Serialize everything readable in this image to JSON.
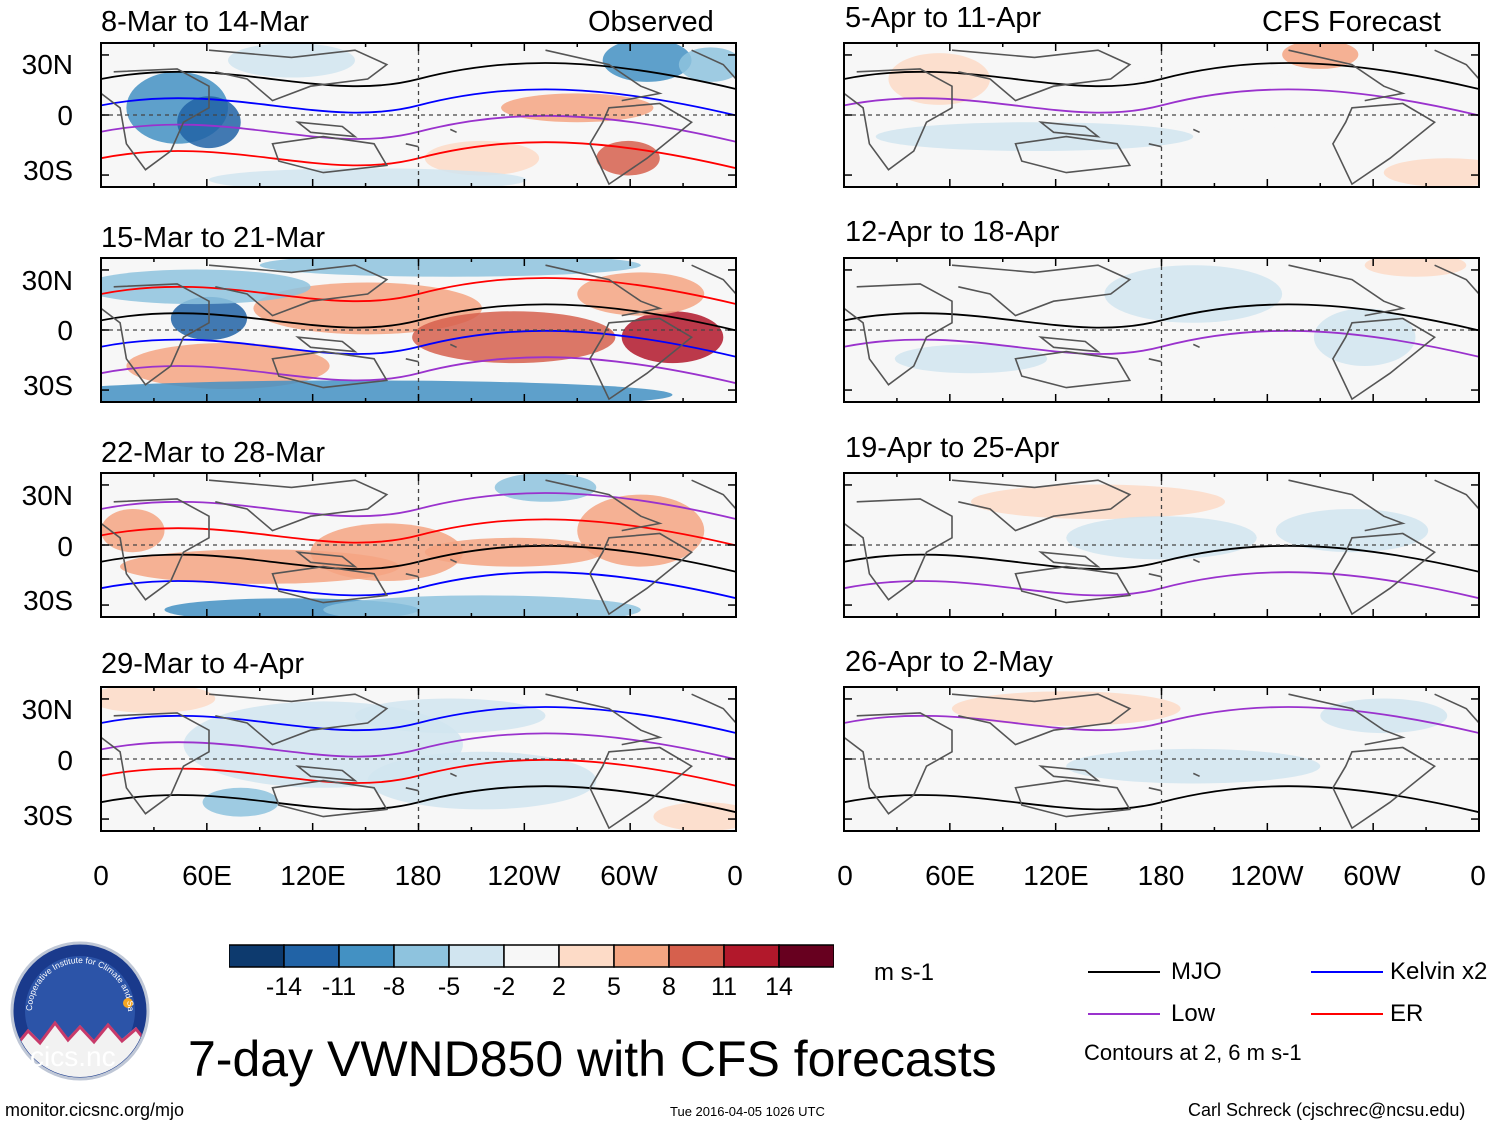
{
  "header": {
    "left_label": "Observed",
    "right_label": "CFS Forecast"
  },
  "panels": {
    "observed": [
      "8-Mar to 14-Mar",
      "15-Mar to 21-Mar",
      "22-Mar to 28-Mar",
      "29-Mar to 4-Apr"
    ],
    "forecast": [
      "5-Apr to 11-Apr",
      "12-Apr to 18-Apr",
      "19-Apr to 25-Apr",
      "26-Apr to 2-May"
    ]
  },
  "axes": {
    "lat_labels": [
      "30N",
      "0",
      "30S"
    ],
    "lon_labels": [
      "0",
      "60E",
      "120E",
      "180",
      "120W",
      "60W",
      "0"
    ]
  },
  "colorbar": {
    "ticks": [
      "-14",
      "-11",
      "-8",
      "-5",
      "-2",
      "2",
      "5",
      "8",
      "11",
      "14"
    ],
    "colors": [
      "#0d3a6e",
      "#2163a6",
      "#4391c3",
      "#8ec3de",
      "#d1e5f0",
      "#f7f7f7",
      "#fddbc7",
      "#f4a582",
      "#d6604d",
      "#b2182b",
      "#67001f"
    ],
    "units": "m s-1"
  },
  "legend": {
    "items": [
      {
        "label": "MJO",
        "color": "#000000"
      },
      {
        "label": "Kelvin x2",
        "color": "#0000ff"
      },
      {
        "label": "Low",
        "color": "#9a32cd"
      },
      {
        "label": "ER",
        "color": "#ff0000"
      }
    ],
    "note": "Contours at 2, 6 m s-1"
  },
  "logo": {
    "text": "cics.nc",
    "ring_text": "Cooperative Institute for Climate and Satellites"
  },
  "title": "7-day VWND850 with CFS forecasts",
  "footer": {
    "url": "monitor.cicsnc.org/mjo",
    "timestamp": "Tue 2016-04-05 1026 UTC",
    "author": "Carl Schreck (cjschrec@ncsu.edu)"
  }
}
